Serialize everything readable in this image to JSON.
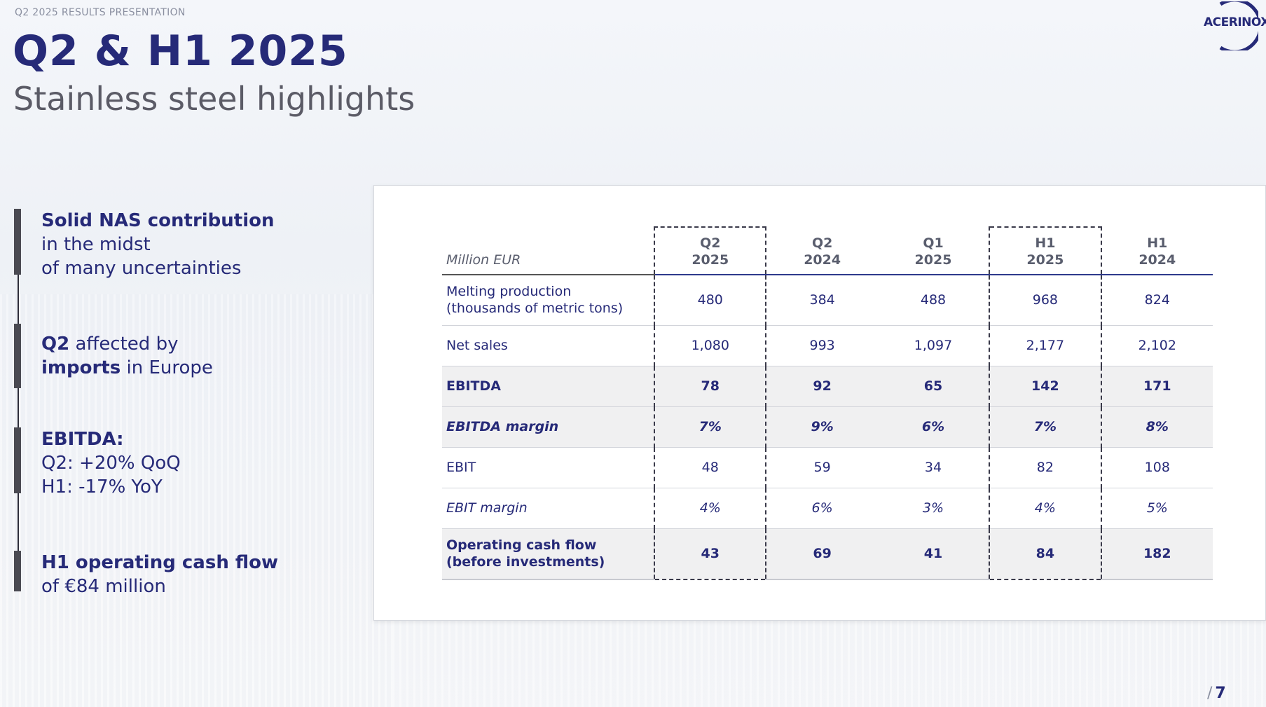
{
  "header": {
    "eyebrow": "Q2 2025 RESULTS PRESENTATION",
    "title": "Q2 & H1 2025",
    "subtitle": "Stainless steel highlights",
    "logo_text": "ACERINOX"
  },
  "highlights": [
    {
      "strong": "Solid NAS contribution",
      "rest_line1": "in the midst",
      "rest_line2": "of many uncertainties"
    },
    {
      "strong1": "Q2",
      "rest1": " affected by",
      "strong2": "imports",
      "rest2": " in Europe"
    },
    {
      "strong": "EBITDA:",
      "line1": "Q2: +20% QoQ",
      "line2": "H1: -17% YoY"
    },
    {
      "strong": "H1 operating cash flow",
      "rest": "of €84 million"
    }
  ],
  "table": {
    "unit_label": "Million EUR",
    "columns": [
      {
        "line1": "Q2",
        "line2": "2025"
      },
      {
        "line1": "Q2",
        "line2": "2024"
      },
      {
        "line1": "Q1",
        "line2": "2025"
      },
      {
        "line1": "H1",
        "line2": "2025"
      },
      {
        "line1": "H1",
        "line2": "2024"
      }
    ],
    "rows": [
      {
        "label1": "Melting production",
        "label2": "(thousands of metric tons)",
        "values": [
          "480",
          "384",
          "488",
          "968",
          "824"
        ]
      },
      {
        "label1": "Net sales",
        "values": [
          "1,080",
          "993",
          "1,097",
          "2,177",
          "2,102"
        ]
      },
      {
        "label1": "EBITDA",
        "values": [
          "78",
          "92",
          "65",
          "142",
          "171"
        ]
      },
      {
        "label1": "EBITDA margin",
        "values": [
          "7%",
          "9%",
          "6%",
          "7%",
          "8%"
        ]
      },
      {
        "label1": "EBIT",
        "values": [
          "48",
          "59",
          "34",
          "82",
          "108"
        ]
      },
      {
        "label1": "EBIT margin",
        "values": [
          "4%",
          "6%",
          "3%",
          "4%",
          "5%"
        ]
      },
      {
        "label1": "Operating cash flow",
        "label2": "(before investments)",
        "values": [
          "43",
          "69",
          "41",
          "84",
          "182"
        ]
      }
    ]
  },
  "footer": {
    "page_number": "7",
    "slash": "/"
  }
}
